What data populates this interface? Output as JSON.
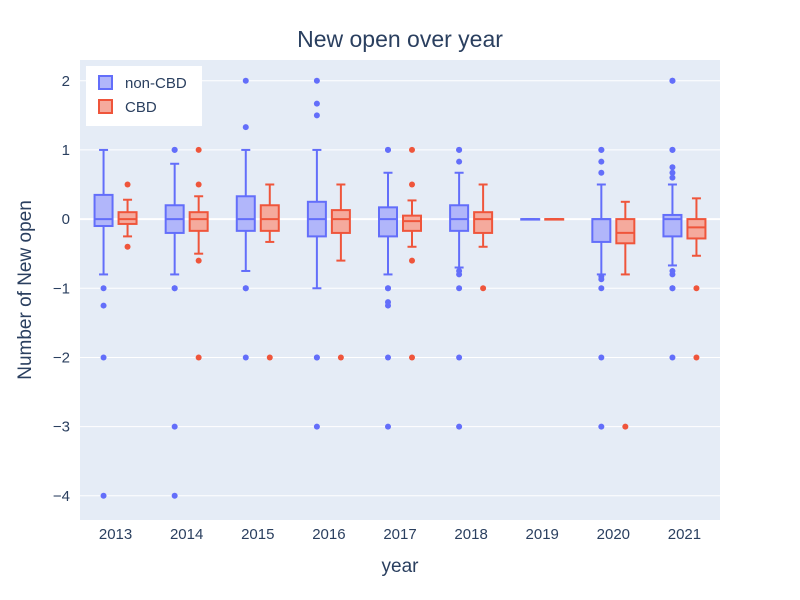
{
  "chart_data": {
    "type": "box",
    "title": "New open over year",
    "xlabel": "year",
    "ylabel": "Number of New open",
    "categories": [
      "2013",
      "2014",
      "2015",
      "2016",
      "2017",
      "2018",
      "2019",
      "2020",
      "2021"
    ],
    "yticks": [
      2,
      1,
      0,
      -1,
      -2,
      -3,
      -4
    ],
    "ylim": [
      -4.35,
      2.3
    ],
    "grid": true,
    "legend_position": "top-left",
    "colors": {
      "plot_bg": "#e5ecf6",
      "grid": "#ffffff",
      "text": "#2a3f5f"
    },
    "series": [
      {
        "name": "non-CBD",
        "color": "#636efa",
        "fill": "#b1b6fa",
        "boxes": [
          {
            "q1": -0.1,
            "median": 0,
            "q3": 0.35,
            "lower": -0.8,
            "upper": 1,
            "outliers": [
              -1,
              -1.25,
              -2,
              -4
            ]
          },
          {
            "q1": -0.2,
            "median": 0,
            "q3": 0.2,
            "lower": -0.8,
            "upper": 0.8,
            "outliers": [
              1,
              1,
              -1,
              -1,
              -3,
              -4
            ]
          },
          {
            "q1": -0.17,
            "median": 0,
            "q3": 0.33,
            "lower": -0.75,
            "upper": 1,
            "outliers": [
              2,
              1.33,
              -1,
              -1,
              -2
            ]
          },
          {
            "q1": -0.25,
            "median": 0,
            "q3": 0.25,
            "lower": -1,
            "upper": 1,
            "outliers": [
              2,
              1.67,
              1.5,
              -2,
              -2,
              -3
            ]
          },
          {
            "q1": -0.25,
            "median": 0,
            "q3": 0.17,
            "lower": -0.8,
            "upper": 0.67,
            "outliers": [
              1,
              1,
              -1,
              -1,
              -1.2,
              -1.25,
              -2,
              -3
            ]
          },
          {
            "q1": -0.17,
            "median": 0,
            "q3": 0.2,
            "lower": -0.7,
            "upper": 0.67,
            "outliers": [
              1,
              1,
              0.83,
              -0.75,
              -0.8,
              -1,
              -2,
              -3
            ]
          },
          {
            "q1": 0,
            "median": 0,
            "q3": 0,
            "lower": 0,
            "upper": 0,
            "outliers": []
          },
          {
            "q1": -0.33,
            "median": 0,
            "q3": 0,
            "lower": -0.8,
            "upper": 0.5,
            "outliers": [
              1,
              1,
              0.83,
              0.67,
              -0.83,
              -0.87,
              -1,
              -2,
              -3
            ]
          },
          {
            "q1": -0.25,
            "median": 0,
            "q3": 0.06,
            "lower": -0.67,
            "upper": 0.5,
            "outliers": [
              2,
              2,
              1,
              1,
              0.75,
              0.67,
              0.6,
              -0.75,
              -0.8,
              -1,
              -1,
              -2
            ]
          }
        ]
      },
      {
        "name": "CBD",
        "color": "#ef553b",
        "fill": "#f5aa9d",
        "boxes": [
          {
            "q1": -0.07,
            "median": 0,
            "q3": 0.1,
            "lower": -0.25,
            "upper": 0.28,
            "outliers": [
              0.5,
              -0.4
            ]
          },
          {
            "q1": -0.17,
            "median": 0,
            "q3": 0.1,
            "lower": -0.5,
            "upper": 0.33,
            "outliers": [
              1,
              0.5,
              -0.6,
              -2
            ]
          },
          {
            "q1": -0.17,
            "median": 0,
            "q3": 0.2,
            "lower": -0.33,
            "upper": 0.5,
            "outliers": [
              -2
            ]
          },
          {
            "q1": -0.2,
            "median": 0,
            "q3": 0.13,
            "lower": -0.6,
            "upper": 0.5,
            "outliers": [
              -2
            ]
          },
          {
            "q1": -0.17,
            "median": -0.03,
            "q3": 0.05,
            "lower": -0.4,
            "upper": 0.27,
            "outliers": [
              1,
              0.5,
              -0.6,
              -2
            ]
          },
          {
            "q1": -0.2,
            "median": 0,
            "q3": 0.1,
            "lower": -0.4,
            "upper": 0.5,
            "outliers": [
              -1
            ]
          },
          {
            "q1": 0,
            "median": 0,
            "q3": 0,
            "lower": 0,
            "upper": 0,
            "outliers": []
          },
          {
            "q1": -0.35,
            "median": -0.2,
            "q3": 0,
            "lower": -0.8,
            "upper": 0.25,
            "outliers": [
              -3
            ]
          },
          {
            "q1": -0.28,
            "median": -0.12,
            "q3": 0,
            "lower": -0.53,
            "upper": 0.3,
            "outliers": [
              -1,
              -2
            ]
          }
        ]
      }
    ]
  }
}
